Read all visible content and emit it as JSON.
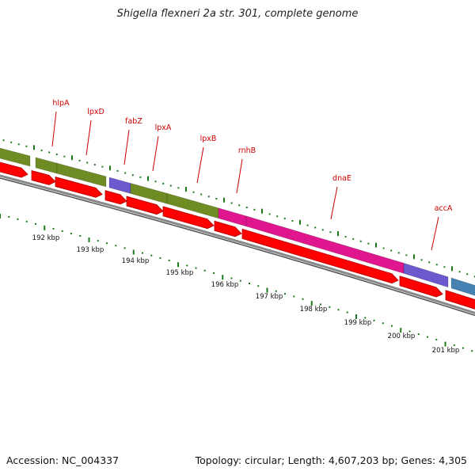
{
  "title": "Shigella flexneri 2a str. 301, complete genome",
  "footer": {
    "accession": "Accession: NC_004337",
    "summary": "Topology: circular; Length: 4,607,203 bp; Genes: 4,305"
  },
  "colors": {
    "olive": "#6e8b24",
    "purple": "#6a5acd",
    "magenta": "#e0168f",
    "steelblue": "#4682b4",
    "red": "#ff0000",
    "darkred": "#b00000",
    "label": "#cc0000",
    "tick": "#1a7a1a",
    "backbone": "#888888"
  },
  "gene_labels": [
    {
      "name": "hlpA"
    },
    {
      "name": "lpxD"
    },
    {
      "name": "fabZ"
    },
    {
      "name": "lpxA"
    },
    {
      "name": "lpxB"
    },
    {
      "name": "rnhB"
    },
    {
      "name": "dnaE"
    },
    {
      "name": "accA"
    }
  ],
  "scale": {
    "unit": "kbp",
    "labels": [
      "192 kbp",
      "193 kbp",
      "194 kbp",
      "195 kbp",
      "196 kbp",
      "197 kbp",
      "198 kbp",
      "199 kbp",
      "200 kbp",
      "201 kbp"
    ]
  }
}
